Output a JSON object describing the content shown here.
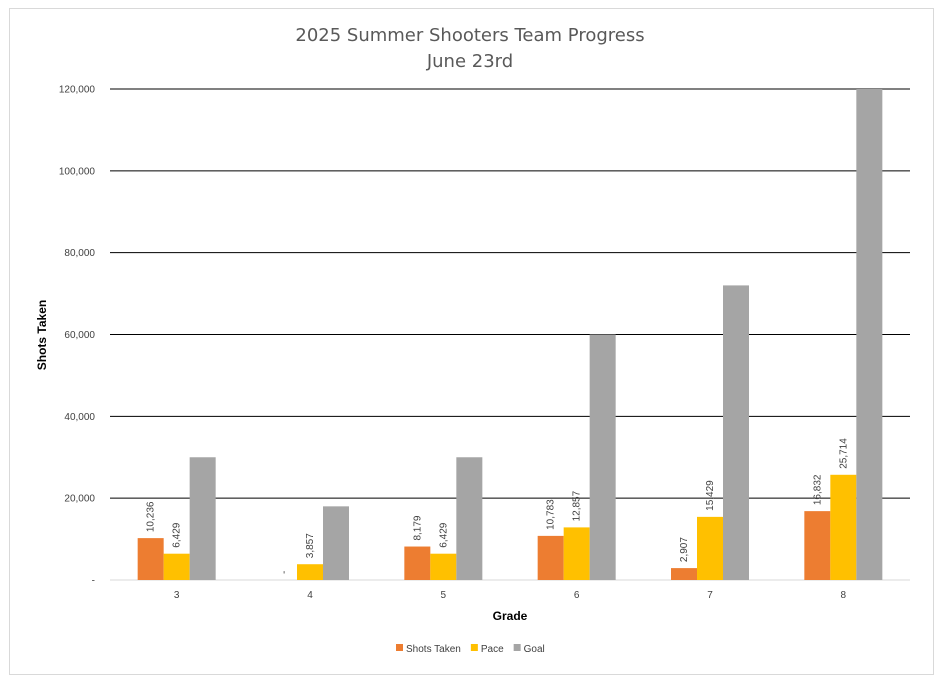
{
  "chart_data": {
    "type": "bar",
    "title": "2025 Summer Shooters Team Progress",
    "subtitle": "June 23rd",
    "xlabel": "Grade",
    "ylabel": "Shots Taken",
    "categories": [
      "3",
      "4",
      "5",
      "6",
      "7",
      "8"
    ],
    "ylim": [
      0,
      120000
    ],
    "yticks": [
      {
        "value": 0,
        "label": "-"
      },
      {
        "value": 20000,
        "label": "20,000"
      },
      {
        "value": 40000,
        "label": "40,000"
      },
      {
        "value": 60000,
        "label": "60,000"
      },
      {
        "value": 80000,
        "label": "80,000"
      },
      {
        "value": 100000,
        "label": "100,000"
      },
      {
        "value": 120000,
        "label": "120,000"
      }
    ],
    "grid": true,
    "legend_position": "bottom",
    "series": [
      {
        "name": "Shots Taken",
        "color": "#ED7D31",
        "values": [
          10236,
          0,
          8179,
          10783,
          2907,
          16832
        ],
        "labels": [
          "10,236",
          "-",
          "8,179",
          "10,783",
          "2,907",
          "16,832"
        ]
      },
      {
        "name": "Pace",
        "color": "#FFC000",
        "values": [
          6429,
          3857,
          6429,
          12857,
          15429,
          25714
        ],
        "labels": [
          "6,429",
          "3,857",
          "6,429",
          "12,857",
          "15,429",
          "25,714"
        ]
      },
      {
        "name": "Goal",
        "color": "#A5A5A5",
        "values": [
          30000,
          18000,
          30000,
          60000,
          72000,
          120000
        ],
        "labels": null
      }
    ]
  }
}
